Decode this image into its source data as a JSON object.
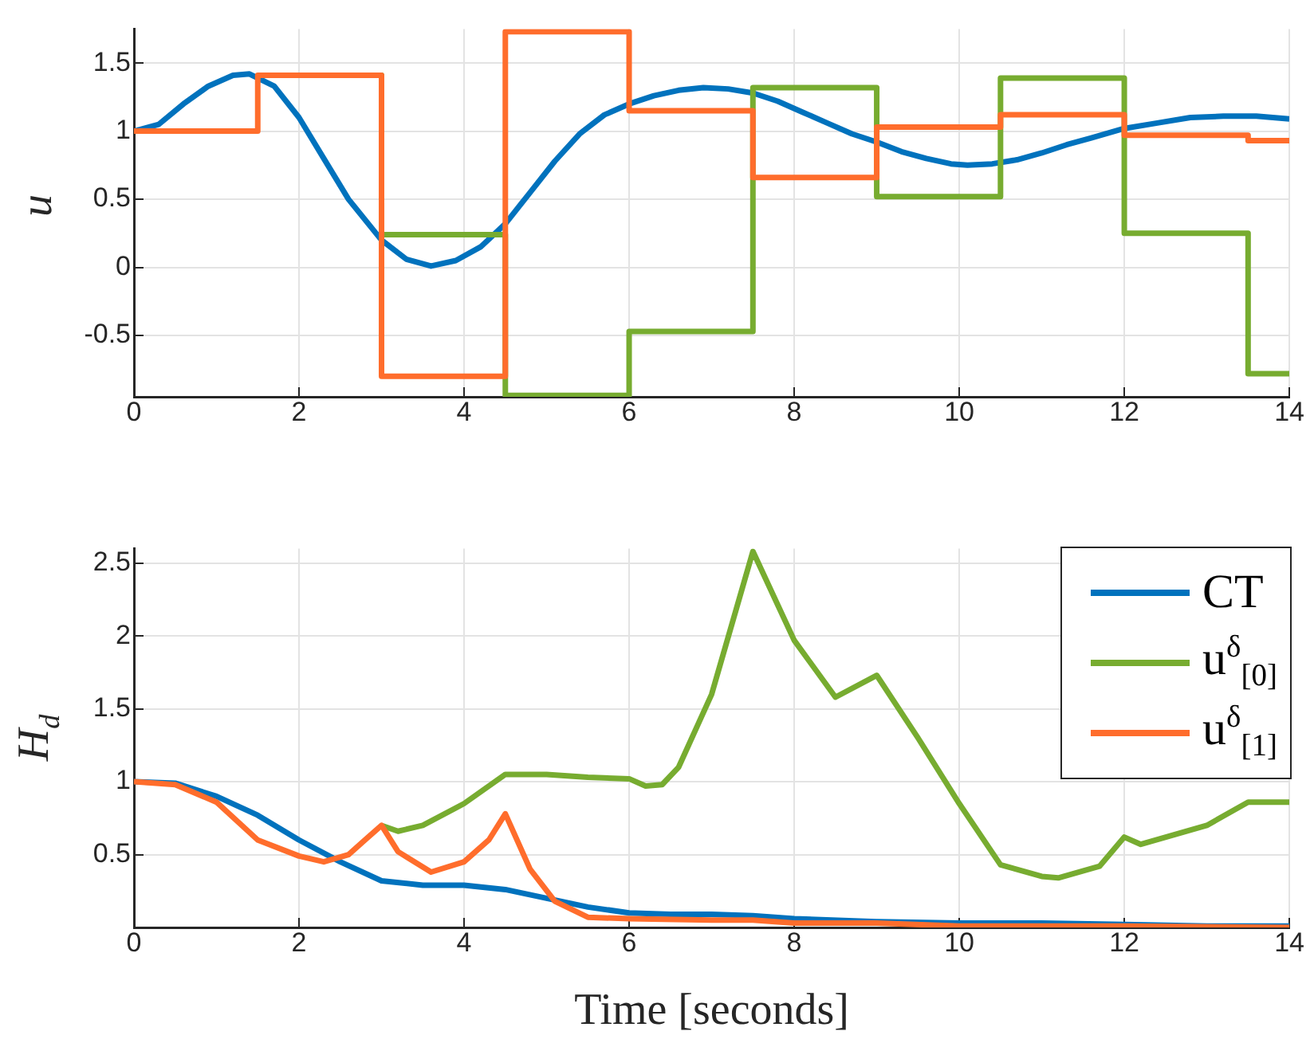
{
  "chart_data": [
    {
      "type": "step",
      "ylabel": "u",
      "xlim": [
        0,
        14
      ],
      "ylim": [
        -0.95,
        1.75
      ],
      "xticks": [
        0,
        2,
        4,
        6,
        8,
        10,
        12,
        14
      ],
      "yticks": [
        -0.5,
        0,
        0.5,
        1,
        1.5
      ],
      "grid": true,
      "legend": false,
      "series": [
        {
          "type": "line",
          "color": "#0072bd",
          "x": [
            0,
            0.3,
            0.6,
            0.9,
            1.2,
            1.4,
            1.7,
            2,
            2.3,
            2.6,
            3,
            3.3,
            3.6,
            3.9,
            4.2,
            4.5,
            4.8,
            5.1,
            5.4,
            5.7,
            6,
            6.3,
            6.6,
            6.9,
            7.2,
            7.5,
            7.8,
            8.1,
            8.4,
            8.7,
            9,
            9.3,
            9.6,
            9.9,
            10.1,
            10.4,
            10.7,
            11,
            11.3,
            11.6,
            12,
            12.4,
            12.8,
            13.2,
            13.6,
            14
          ],
          "values": [
            1.0,
            1.05,
            1.2,
            1.33,
            1.41,
            1.42,
            1.33,
            1.1,
            0.8,
            0.5,
            0.2,
            0.06,
            0.01,
            0.05,
            0.15,
            0.32,
            0.55,
            0.78,
            0.98,
            1.12,
            1.2,
            1.26,
            1.3,
            1.32,
            1.31,
            1.28,
            1.22,
            1.14,
            1.06,
            0.98,
            0.92,
            0.85,
            0.8,
            0.76,
            0.75,
            0.76,
            0.79,
            0.84,
            0.9,
            0.95,
            1.02,
            1.06,
            1.1,
            1.11,
            1.11,
            1.09
          ]
        },
        {
          "color": "#77ac30",
          "x": [
            1.5,
            3,
            4.5,
            6,
            7.5,
            9,
            10.5,
            12,
            13.5,
            14
          ],
          "values": [
            1.41,
            0.24,
            -0.94,
            -0.47,
            1.32,
            0.52,
            1.39,
            0.25,
            -0.78,
            -0.78
          ]
        },
        {
          "color": "#ff6d2c",
          "x": [
            0,
            1.5,
            3,
            4.5,
            6,
            7.5,
            9,
            10.5,
            12,
            13.5,
            14
          ],
          "values": [
            1,
            1.41,
            -0.8,
            1.73,
            1.15,
            0.66,
            1.03,
            1.12,
            0.97,
            0.93,
            0.93
          ]
        }
      ]
    },
    {
      "type": "line",
      "xlabel": "Time [seconds]",
      "ylabel": "H$_{d}$",
      "xlim": [
        0,
        14
      ],
      "ylim": [
        0,
        2.6
      ],
      "xticks": [
        0,
        2,
        4,
        6,
        8,
        10,
        12,
        14
      ],
      "yticks": [
        0.5,
        1,
        1.5,
        2,
        2.5
      ],
      "grid": true,
      "legend": "top right",
      "series": [
        {
          "name": "CT",
          "color": "#0072bd",
          "x": [
            0,
            0.5,
            1,
            1.5,
            2,
            2.5,
            3,
            3.5,
            4,
            4.5,
            5,
            5.5,
            6,
            6.5,
            7,
            7.5,
            8,
            9,
            10,
            11,
            12,
            13,
            14
          ],
          "values": [
            1,
            0.99,
            0.9,
            0.77,
            0.6,
            0.45,
            0.32,
            0.29,
            0.29,
            0.26,
            0.2,
            0.14,
            0.1,
            0.09,
            0.09,
            0.08,
            0.06,
            0.04,
            0.03,
            0.03,
            0.02,
            0.01,
            0.01
          ]
        },
        {
          "name": "u$^{δ}$$_{[0]}$",
          "color": "#77ac30",
          "x": [
            3,
            3.2,
            3.5,
            4,
            4.5,
            5,
            5.5,
            6,
            6.2,
            6.4,
            6.6,
            7,
            7.5,
            8,
            8.5,
            9,
            9.5,
            10,
            10.5,
            11,
            11.2,
            11.7,
            12,
            12.2,
            13,
            13.5,
            14
          ],
          "values": [
            0.7,
            0.66,
            0.7,
            0.85,
            1.05,
            1.05,
            1.03,
            1.02,
            0.97,
            0.98,
            1.1,
            1.6,
            2.58,
            1.97,
            1.58,
            1.73,
            1.3,
            0.85,
            0.43,
            0.35,
            0.34,
            0.42,
            0.62,
            0.57,
            0.7,
            0.86,
            0.86
          ]
        },
        {
          "name": "u$^{δ}$$_{[1]}$",
          "color": "#ff6d2c",
          "x": [
            0,
            0.5,
            1,
            1.5,
            2,
            2.3,
            2.6,
            2.8,
            3,
            3.2,
            3.6,
            4,
            4.3,
            4.5,
            4.8,
            5.1,
            5.5,
            6,
            7,
            7.5,
            8,
            9,
            10,
            12,
            14
          ],
          "values": [
            1,
            0.98,
            0.86,
            0.6,
            0.49,
            0.45,
            0.5,
            0.6,
            0.7,
            0.52,
            0.38,
            0.45,
            0.6,
            0.78,
            0.4,
            0.18,
            0.07,
            0.06,
            0.05,
            0.05,
            0.03,
            0.03,
            0.01,
            0.01,
            0.0
          ]
        }
      ]
    }
  ]
}
